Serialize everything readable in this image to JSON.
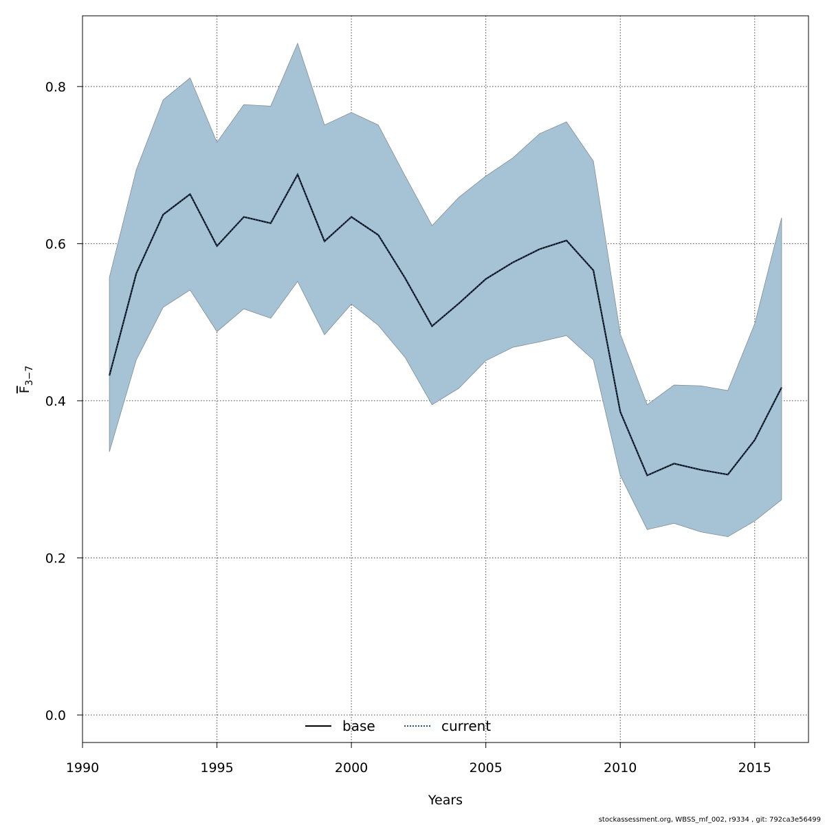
{
  "chart_data": {
    "type": "area",
    "xlabel": "Years",
    "ylabel": {
      "main": "F",
      "sub": "3−7"
    },
    "xlim": [
      1990,
      2017
    ],
    "ylim": [
      -0.035,
      0.89
    ],
    "xticks": [
      1990,
      1995,
      2000,
      2005,
      2010,
      2015
    ],
    "yticks": [
      0.0,
      0.2,
      0.4,
      0.6,
      0.8
    ],
    "ytick_labels": [
      "0.0",
      "0.2",
      "0.4",
      "0.6",
      "0.8"
    ],
    "grid": true,
    "legend_position": "bottom-center",
    "x": [
      1991,
      1992,
      1993,
      1994,
      1995,
      1996,
      1997,
      1998,
      1999,
      2000,
      2001,
      2002,
      2003,
      2004,
      2005,
      2006,
      2007,
      2008,
      2009,
      2010,
      2011,
      2012,
      2013,
      2014,
      2015,
      2016
    ],
    "series": [
      {
        "name": "current",
        "style": "dotted",
        "color": "#1f4e79",
        "values": [
          0.432,
          0.562,
          0.637,
          0.663,
          0.597,
          0.634,
          0.626,
          0.688,
          0.603,
          0.634,
          0.611,
          0.556,
          0.495,
          0.524,
          0.555,
          0.576,
          0.593,
          0.604,
          0.566,
          0.386,
          0.305,
          0.32,
          0.312,
          0.306,
          0.35,
          0.417
        ]
      }
    ],
    "band": {
      "color": "#a5c3d4",
      "lower": [
        0.335,
        0.452,
        0.519,
        0.541,
        0.488,
        0.517,
        0.505,
        0.552,
        0.484,
        0.523,
        0.496,
        0.455,
        0.395,
        0.416,
        0.451,
        0.468,
        0.475,
        0.483,
        0.452,
        0.305,
        0.236,
        0.244,
        0.233,
        0.227,
        0.247,
        0.274
      ],
      "upper": [
        0.557,
        0.694,
        0.783,
        0.811,
        0.729,
        0.777,
        0.775,
        0.855,
        0.751,
        0.767,
        0.751,
        0.686,
        0.623,
        0.659,
        0.686,
        0.709,
        0.74,
        0.755,
        0.705,
        0.485,
        0.395,
        0.42,
        0.419,
        0.413,
        0.498,
        0.633
      ]
    },
    "legend": [
      {
        "label": "base",
        "style": "solid",
        "color": "#000000"
      },
      {
        "label": "current",
        "style": "dotted",
        "color": "#1f4e79"
      }
    ]
  },
  "footer_text": "stockassessment.org, WBSS_mf_002, r9334 , git: 792ca3e56499"
}
